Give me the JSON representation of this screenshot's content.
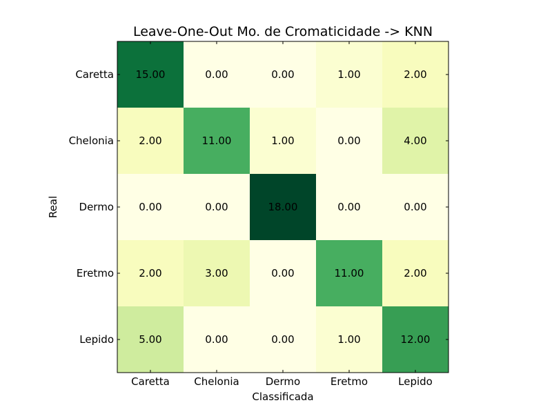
{
  "chart_data": {
    "type": "heatmap",
    "title": "Leave-One-Out Mo. de Cromaticidade -> KNN",
    "xlabel": "Classificada",
    "ylabel": "Real",
    "x_categories": [
      "Caretta",
      "Chelonia",
      "Dermo",
      "Eretmo",
      "Lepido"
    ],
    "y_categories": [
      "Caretta",
      "Chelonia",
      "Dermo",
      "Eretmo",
      "Lepido"
    ],
    "values": [
      [
        15,
        0,
        0,
        1,
        2
      ],
      [
        2,
        11,
        1,
        0,
        4
      ],
      [
        0,
        0,
        18,
        0,
        0
      ],
      [
        2,
        3,
        0,
        11,
        2
      ],
      [
        5,
        0,
        0,
        1,
        12
      ]
    ],
    "value_labels": [
      [
        "15.00",
        "0.00",
        "0.00",
        "1.00",
        "2.00"
      ],
      [
        "2.00",
        "11.00",
        "1.00",
        "0.00",
        "4.00"
      ],
      [
        "0.00",
        "0.00",
        "18.00",
        "0.00",
        "0.00"
      ],
      [
        "2.00",
        "3.00",
        "0.00",
        "11.00",
        "2.00"
      ],
      [
        "5.00",
        "0.00",
        "0.00",
        "1.00",
        "12.00"
      ]
    ],
    "value_range": [
      0,
      18
    ],
    "colormap": "YlGn",
    "colormap_stops": [
      "#ffffe5",
      "#f7fcb9",
      "#d9f0a3",
      "#addd8e",
      "#78c679",
      "#41ab5d",
      "#238443",
      "#006837",
      "#004529"
    ],
    "grid": false,
    "legend": "none"
  }
}
